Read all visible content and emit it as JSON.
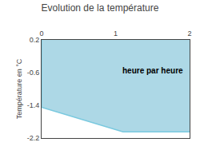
{
  "chart_data": {
    "type": "area",
    "title": "Evolution de la température",
    "y_label": "Température en °C",
    "x": [
      0,
      0,
      1.1,
      2
    ],
    "series": [
      {
        "values": [
          0.2,
          -1.45,
          -2.05,
          -2.05
        ],
        "color": "#7ac9df"
      }
    ],
    "fill_top": 0.2,
    "color": "#add8e6",
    "xlim": [
      0,
      2
    ],
    "ylim": [
      -2.2,
      0.2
    ],
    "xticks": [
      0,
      1,
      2
    ],
    "yticks": [
      0.2,
      -0.6,
      -1.4,
      -2.2
    ],
    "grid": "y",
    "annotations": [
      {
        "text": "heure par heure",
        "x": 1.5,
        "y": -0.55
      }
    ]
  }
}
